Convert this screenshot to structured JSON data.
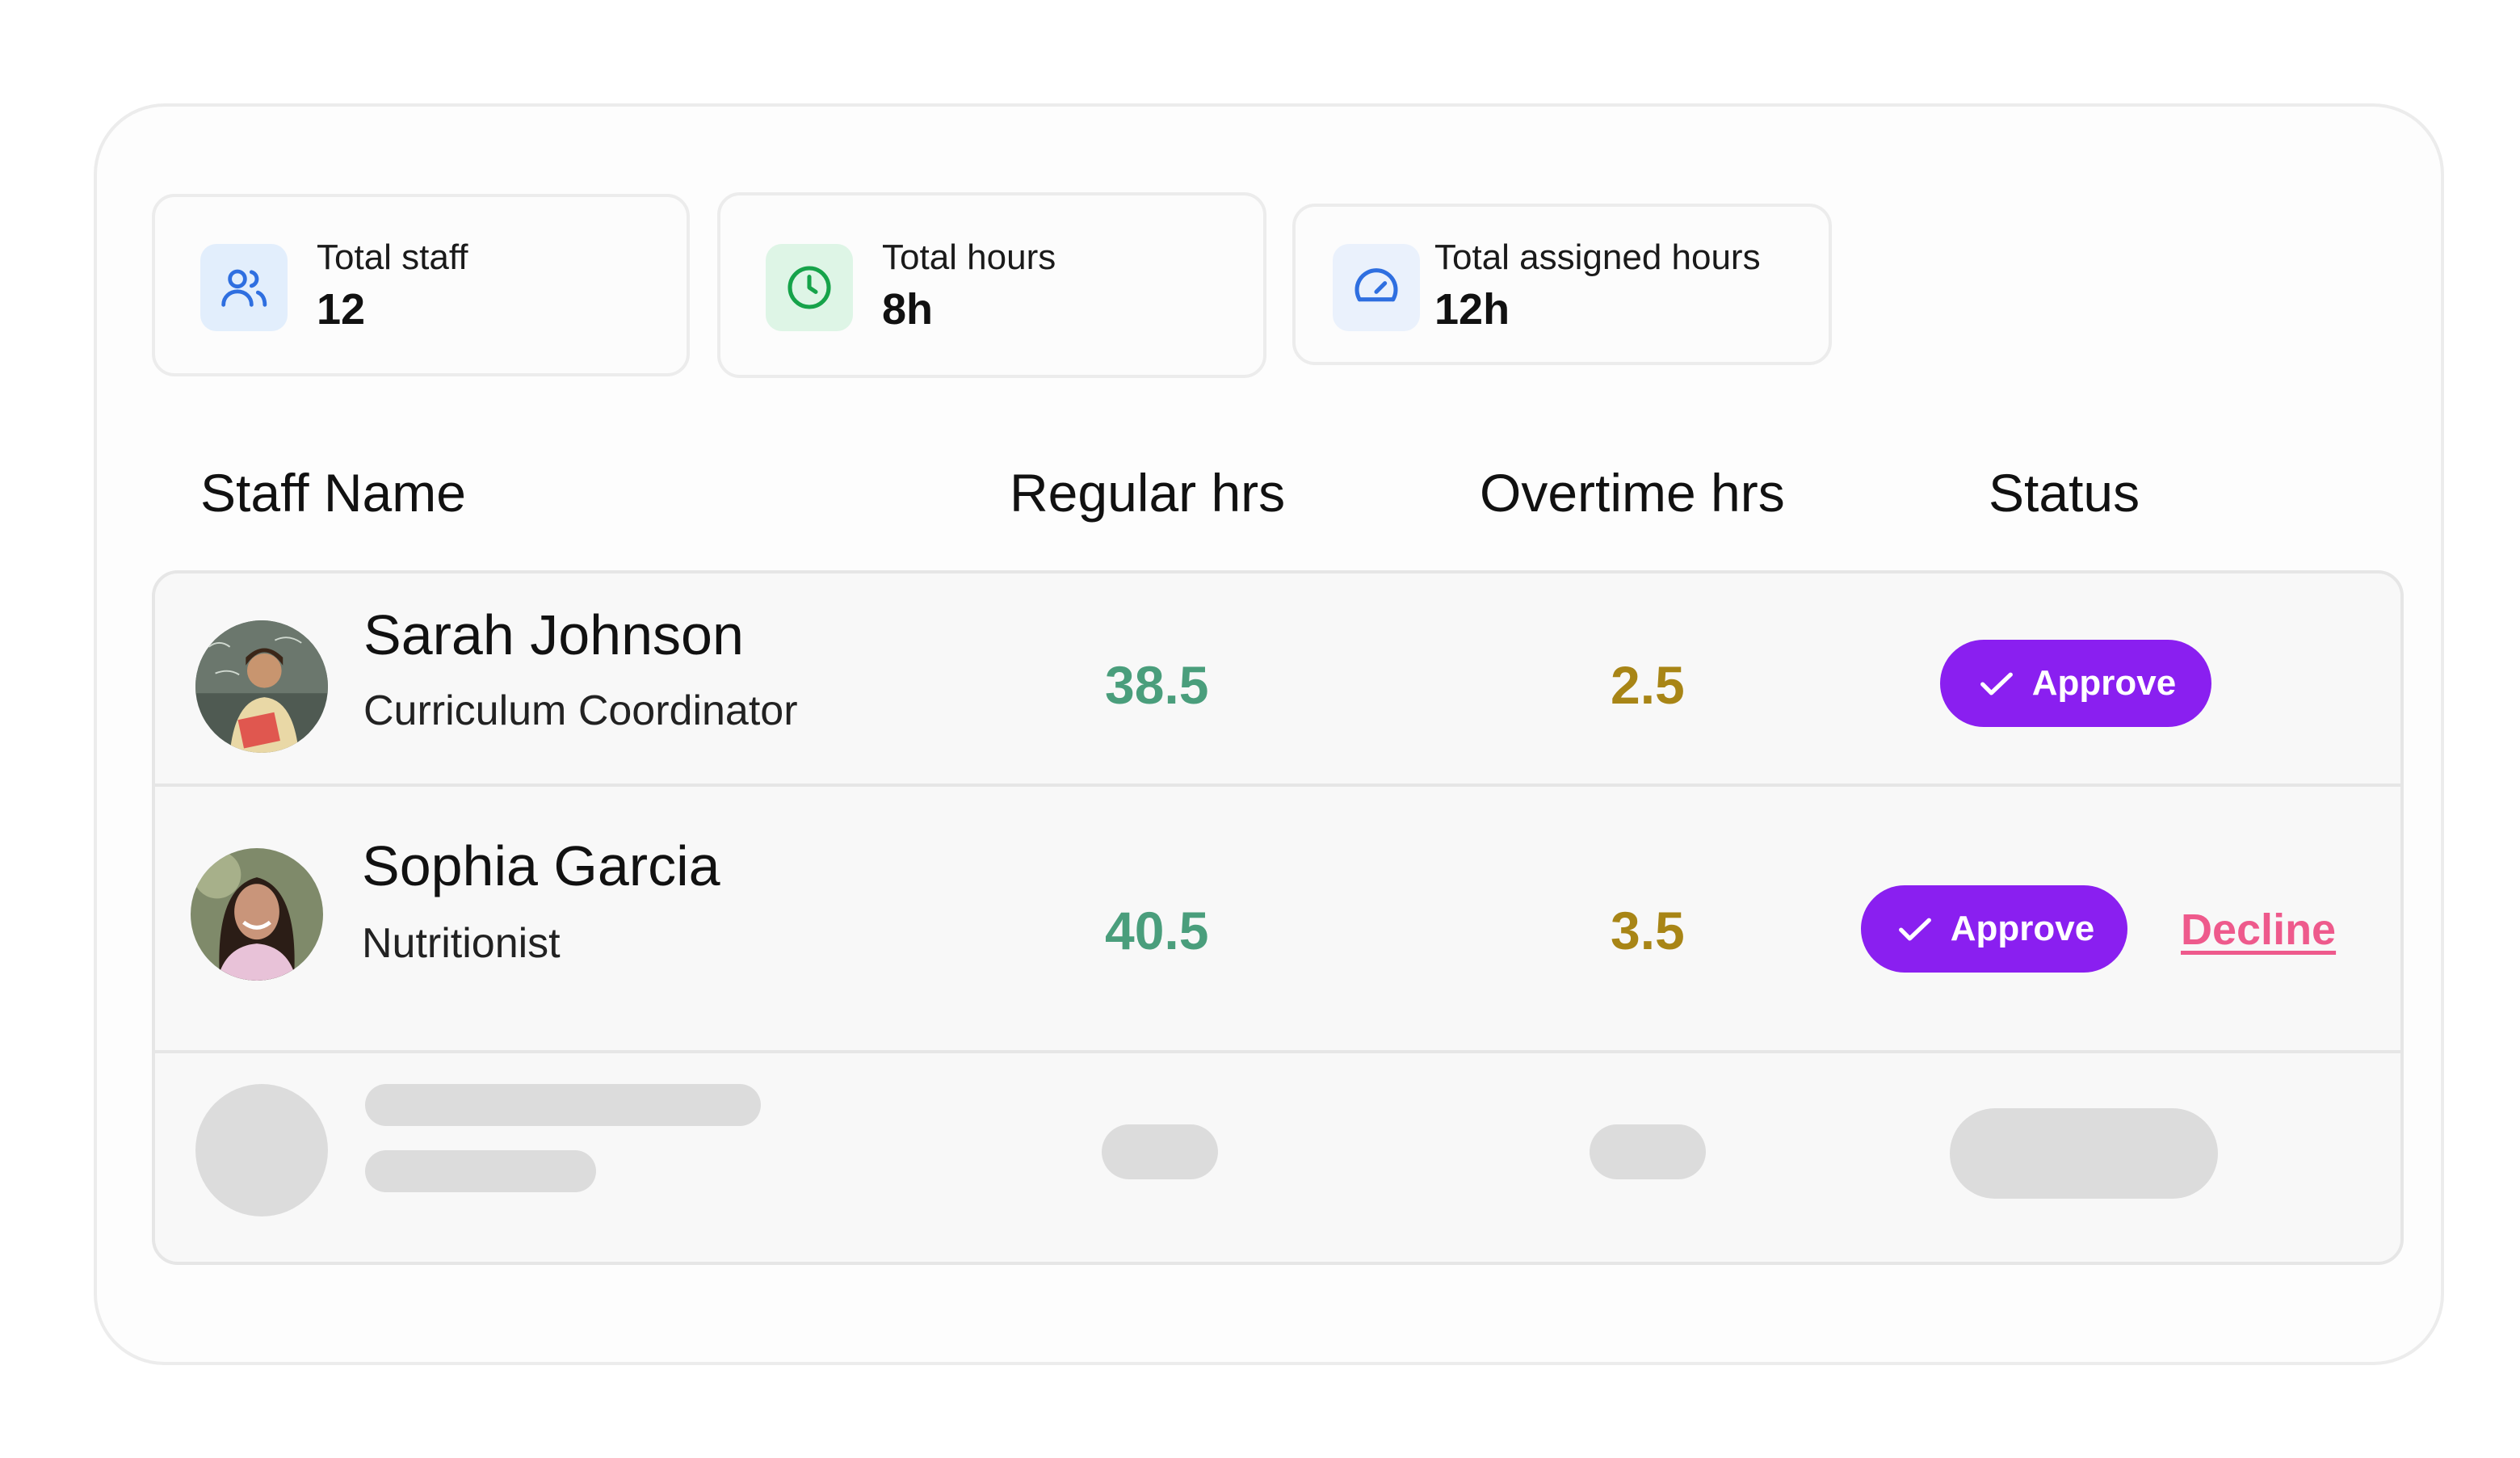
{
  "stats": [
    {
      "label": "Total staff",
      "value": "12",
      "icon": "users-icon"
    },
    {
      "label": "Total hours",
      "value": "8h",
      "icon": "clock-icon"
    },
    {
      "label": "Total assigned hours",
      "value": "12h",
      "icon": "gauge-icon"
    }
  ],
  "table": {
    "headers": {
      "name": "Staff Name",
      "regular": "Regular hrs",
      "overtime": "Overtime hrs",
      "status": "Status"
    },
    "rows": [
      {
        "name": "Sarah Johnson",
        "role": "Curriculum Coordinator",
        "regular": "38.5",
        "overtime": "2.5",
        "approve_label": "Approve"
      },
      {
        "name": "Sophia Garcia",
        "role": "Nutritionist",
        "regular": "40.5",
        "overtime": "3.5",
        "approve_label": "Approve",
        "decline_label": "Decline"
      }
    ]
  },
  "colors": {
    "accent": "#8a1ff0",
    "regular_hours": "#4a9e7c",
    "overtime_hours": "#a88516",
    "decline": "#ee5a8c",
    "skeleton": "#dcdcdc"
  }
}
